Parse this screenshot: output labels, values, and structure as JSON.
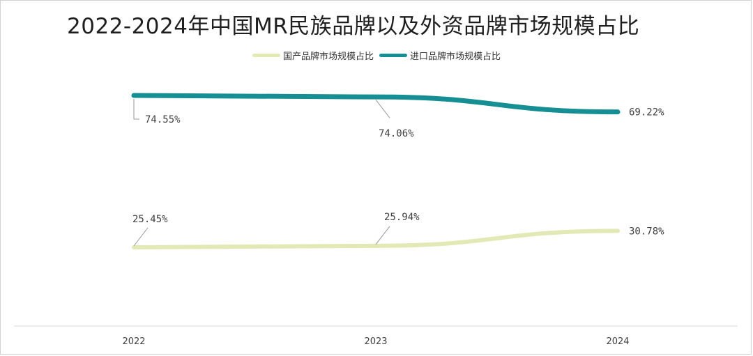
{
  "title": "2022-2024年中国MR民族品牌以及外资品牌市场规模占比",
  "chart_data": {
    "type": "line",
    "title": "2022-2024年中国MR民族品牌以及外资品牌市场规模占比",
    "categories": [
      "2022",
      "2023",
      "2024"
    ],
    "series": [
      {
        "name": "国产品牌市场规模占比",
        "values": [
          25.45,
          25.94,
          30.78
        ],
        "labels": [
          "25.45%",
          "25.94%",
          "30.78%"
        ],
        "color": "#e3e9b4"
      },
      {
        "name": "进口品牌市场规模占比",
        "values": [
          74.55,
          74.06,
          69.22
        ],
        "labels": [
          "74.55%",
          "74.06%",
          "69.22%"
        ],
        "color": "#168f94"
      }
    ],
    "ylim": [
      0,
      90
    ],
    "legend": "top",
    "grid": false
  }
}
